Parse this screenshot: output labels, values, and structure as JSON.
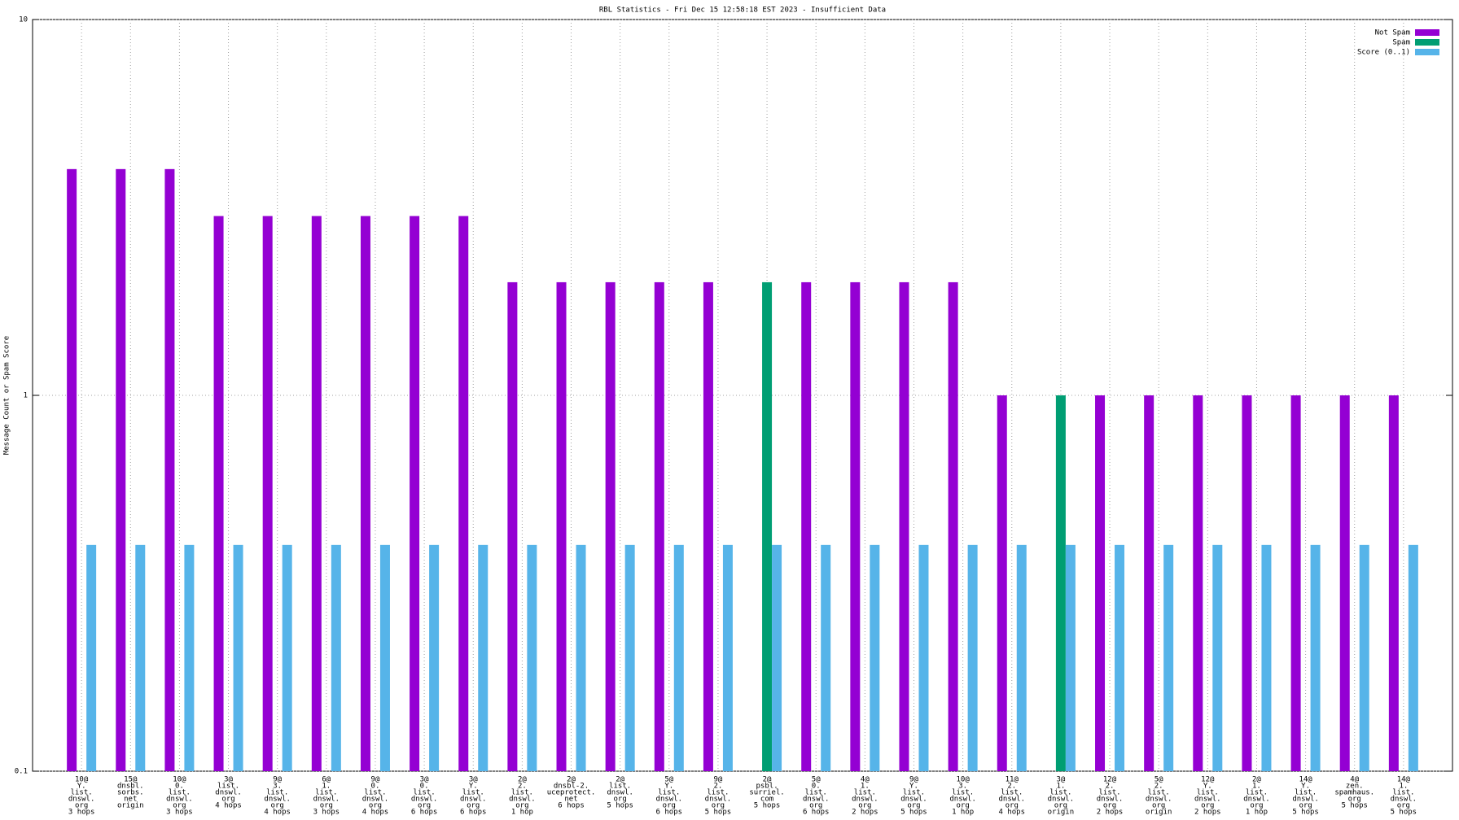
{
  "chart_data": {
    "type": "bar",
    "title": "RBL Statistics - Fri Dec 15 12:58:18 EST 2023 - Insufficient Data",
    "y_label": "Message Count or Spam Score",
    "log_scale": true,
    "grid": true,
    "legend": "top-right",
    "ylim": [
      0.1,
      10
    ],
    "yticks": [
      0.1,
      1,
      10
    ],
    "categories": [
      [
        "10@",
        "Y.",
        "list.",
        "dnswl.",
        "org",
        "3 hops"
      ],
      [
        "15@",
        "dnsbl.",
        "sorbs.",
        "net",
        "origin"
      ],
      [
        "10@",
        "0.",
        "list.",
        "dnswl.",
        "org",
        "3 hops"
      ],
      [
        "3@",
        "list.",
        "dnswl.",
        "org",
        "4 hops"
      ],
      [
        "9@",
        "3.",
        "list.",
        "dnswl.",
        "org",
        "4 hops"
      ],
      [
        "6@",
        "1.",
        "list.",
        "dnswl.",
        "org",
        "3 hops"
      ],
      [
        "9@",
        "0.",
        "list.",
        "dnswl.",
        "org",
        "4 hops"
      ],
      [
        "3@",
        "0.",
        "list.",
        "dnswl.",
        "org",
        "6 hops"
      ],
      [
        "3@",
        "Y.",
        "list.",
        "dnswl.",
        "org",
        "6 hops"
      ],
      [
        "2@",
        "2.",
        "list.",
        "dnswl.",
        "org",
        "1 hop"
      ],
      [
        "2@",
        "dnsbl-2.",
        "uceprotect.",
        "net",
        "6 hops"
      ],
      [
        "2@",
        "list.",
        "dnswl.",
        "org",
        "5 hops"
      ],
      [
        "5@",
        "Y.",
        "list.",
        "dnswl.",
        "org",
        "6 hops"
      ],
      [
        "9@",
        "2.",
        "list.",
        "dnswl.",
        "org",
        "5 hops"
      ],
      [
        "2@",
        "psbl.",
        "surriel.",
        "com",
        "5 hops"
      ],
      [
        "5@",
        "0.",
        "list.",
        "dnswl.",
        "org",
        "6 hops"
      ],
      [
        "4@",
        "1.",
        "list.",
        "dnswl.",
        "org",
        "2 hops"
      ],
      [
        "9@",
        "Y.",
        "list.",
        "dnswl.",
        "org",
        "5 hops"
      ],
      [
        "10@",
        "3.",
        "list.",
        "dnswl.",
        "org",
        "1 hop"
      ],
      [
        "11@",
        "2.",
        "list.",
        "dnswl.",
        "org",
        "4 hops"
      ],
      [
        "3@",
        "1.",
        "list.",
        "dnswl.",
        "org",
        "origin"
      ],
      [
        "12@",
        "2.",
        "list.",
        "dnswl.",
        "org",
        "2 hops"
      ],
      [
        "5@",
        "2.",
        "list.",
        "dnswl.",
        "org",
        "origin"
      ],
      [
        "12@",
        "Y.",
        "list.",
        "dnswl.",
        "org",
        "2 hops"
      ],
      [
        "2@",
        "1.",
        "list.",
        "dnswl.",
        "org",
        "1 hop"
      ],
      [
        "14@",
        "Y.",
        "list.",
        "dnswl.",
        "org",
        "5 hops"
      ],
      [
        "4@",
        "zen.",
        "spamhaus.",
        "org",
        "5 hops"
      ],
      [
        "14@",
        "1.",
        "list.",
        "dnswl.",
        "org",
        "5 hops"
      ]
    ],
    "series": [
      {
        "name": "Not Spam",
        "color": "#9400d3",
        "values": [
          4,
          4,
          4,
          3,
          3,
          3,
          3,
          3,
          3,
          2,
          2,
          2,
          2,
          2,
          null,
          2,
          2,
          2,
          2,
          1,
          null,
          1,
          1,
          1,
          1,
          1,
          1,
          1
        ]
      },
      {
        "name": "Spam",
        "color": "#009e73",
        "values": [
          null,
          null,
          null,
          null,
          null,
          null,
          null,
          null,
          null,
          null,
          null,
          null,
          null,
          null,
          2,
          null,
          null,
          null,
          null,
          null,
          1,
          null,
          null,
          null,
          null,
          null,
          null,
          null
        ]
      },
      {
        "name": "Score (0..1)",
        "color": "#56b4e9",
        "values": [
          0.4,
          0.4,
          0.4,
          0.4,
          0.4,
          0.4,
          0.4,
          0.4,
          0.4,
          0.4,
          0.4,
          0.4,
          0.4,
          0.4,
          0.4,
          0.4,
          0.4,
          0.4,
          0.4,
          0.4,
          0.4,
          0.4,
          0.4,
          0.4,
          0.4,
          0.4,
          0.4,
          0.4
        ]
      }
    ]
  }
}
